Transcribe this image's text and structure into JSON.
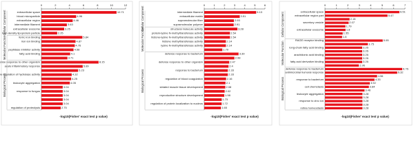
{
  "chart_data": [
    {
      "type": "hbar-grouped",
      "color": "#e8141c",
      "x_label": "-log10(Fisher' exact test p value)",
      "xlim": [
        0,
        12
      ],
      "xticks": [
        0,
        2,
        4,
        6,
        8,
        10,
        12
      ],
      "groups": [
        {
          "name": "Cellular Component",
          "categories": [
            "extracellular space",
            "blood microparticle",
            "extracellular region",
            "intermediate filament",
            "extracellular exosome",
            "high-density lipoprotein particle"
          ],
          "values": [
            10.71,
            4.96,
            4.46,
            3.63,
            3.25,
            2.25
          ]
        },
        {
          "name": "Molecular Function",
          "categories": [
            "ferric iron binding",
            "iron ion binding",
            null,
            "peptidase inhibitor activity",
            "fatty acid binding",
            null
          ],
          "values": [
            5.84,
            4.87,
            4.76,
            4.58,
            4.1,
            3.71
          ]
        },
        {
          "name": "Biological Process",
          "categories": [
            "defense response to other organism",
            "acute inflammatory response",
            null,
            "negative regulation of hydrolase activity",
            null,
            "leukocyte aggregation",
            null,
            "response to fungus",
            null,
            null,
            null,
            "regulation of proteolysis"
          ],
          "values": [
            8.15,
            5.89,
            5.23,
            4.32,
            4.25,
            4.05,
            3.04,
            3.04,
            3.04,
            3.04,
            3.04,
            2.75
          ]
        }
      ]
    },
    {
      "type": "hbar-grouped",
      "color": "#e8141c",
      "x_label": "-log10(Fisher' exact test p value)",
      "xlim": [
        0,
        6
      ],
      "xticks": [
        0,
        1,
        2,
        3,
        4,
        5,
        6
      ],
      "groups": [
        {
          "name": "Cellular Component",
          "categories": [
            "intermediate filament",
            "extracellular matrix",
            "supramolecular fiber",
            "supramolecular polymer"
          ],
          "values": [
            5.13,
            3.51,
            2.93,
            2.91
          ]
        },
        {
          "name": "Molecular Function",
          "categories": [
            "structural molecule activity",
            "protein-lysine N-methyltransferase activity",
            "histone-lysine N-methyltransferase activity",
            "histone methyltransferase activity",
            "lysine N-methyltransferase activity",
            null
          ],
          "values": [
            3.28,
            2.54,
            2.54,
            2.14,
            2.14,
            1.79
          ]
        },
        {
          "name": "Biological Process",
          "categories": [
            "defense response to bacterium",
            null,
            "defense response to other organism",
            null,
            "response to bacterium",
            null,
            "regulation of blood coagulation",
            null,
            "striated muscle tissue development",
            null,
            "reproductive structure development",
            null,
            "regulation of protein localization to nucleus",
            null
          ],
          "values": [
            3.39,
            2.98,
            2.47,
            2.4,
            2.33,
            2.33,
            2.16,
            2.1,
            2.08,
            2.02,
            1.98,
            1.73,
            1.72,
            1.65
          ]
        }
      ]
    },
    {
      "type": "hbar-grouped",
      "color": "#e8141c",
      "x_label": "-log10(Fisher' exact test p value)",
      "xlim": [
        0,
        7
      ],
      "xticks": [
        0,
        1,
        2,
        3,
        4,
        5,
        6,
        7
      ],
      "groups": [
        {
          "name": "Cellular Component",
          "categories": [
            "extracellular space",
            "extracellular region part",
            null,
            "secretory vesicle",
            null,
            "extracellular exosome",
            null,
            null
          ],
          "values": [
            6.51,
            5.47,
            2.15,
            2.07,
            1.79,
            1.8,
            1.55,
            1.5
          ]
        },
        {
          "name": "Molecular Function",
          "categories": [
            "RAGE receptor binding",
            null,
            "long-chain fatty acid binding",
            null,
            "arachidonic acid binding",
            null,
            "fatty acid derivative binding",
            null
          ],
          "values": [
            5.05,
            3.75,
            3.26,
            3.26,
            3.26,
            3.26,
            3.26,
            2.96
          ]
        },
        {
          "name": "Biological Process",
          "categories": [
            "defense response to bacterium",
            "antimicrobial humoral response",
            null,
            "response to bacterium",
            null,
            "cell chemotaxis",
            null,
            "leukocyte aggregation",
            null,
            "response to zinc ion",
            null,
            "retina homeostasis"
          ],
          "values": [
            6.76,
            6.32,
            4.56,
            4.33,
            3.92,
            3.84,
            3.46,
            3.28,
            3.28,
            3.28,
            3.28,
            3.28
          ]
        }
      ]
    }
  ]
}
